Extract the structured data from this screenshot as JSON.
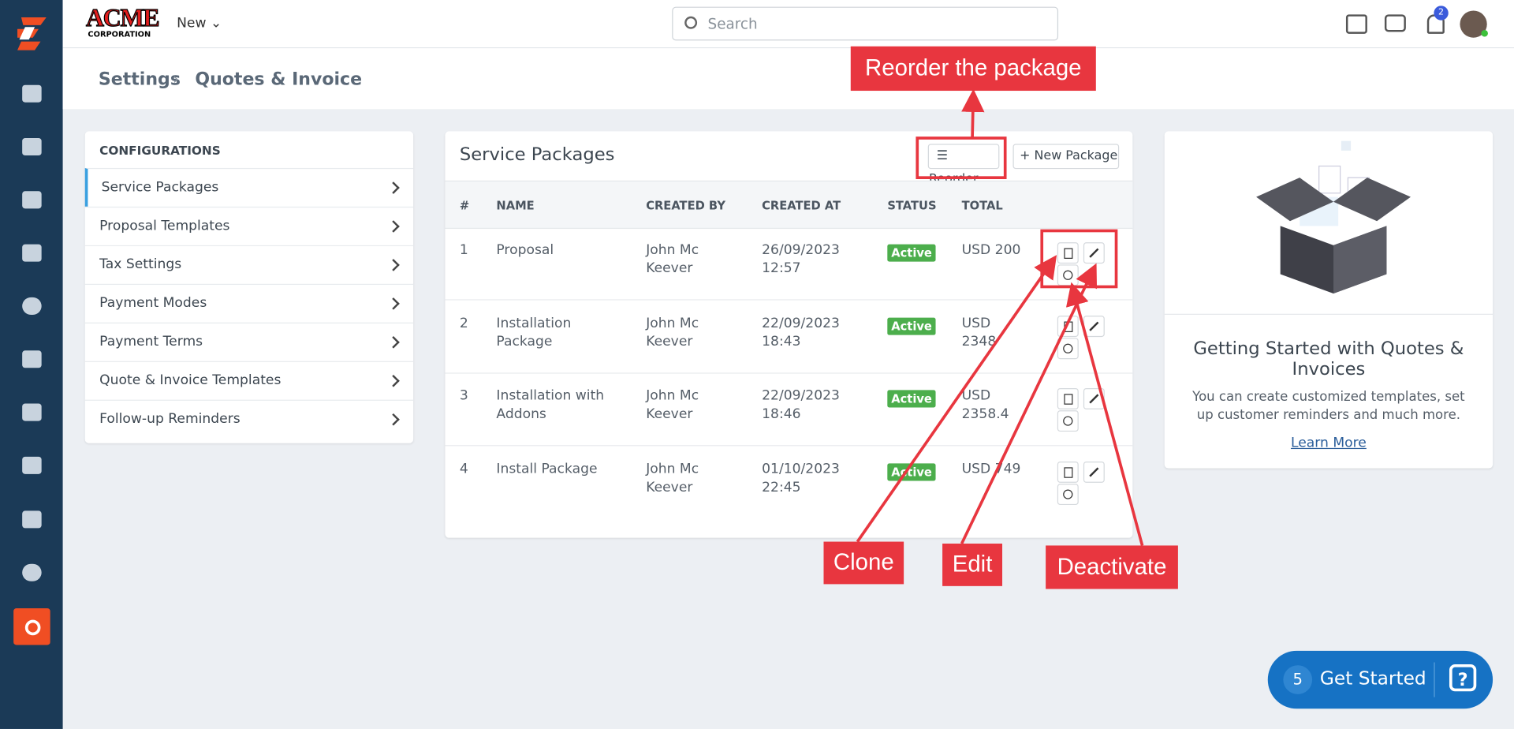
{
  "header": {
    "logo": "ACME",
    "logo_sub": "CORPORATION",
    "new_button": "New",
    "search_placeholder": "Search",
    "notification_count": 2
  },
  "breadcrumb": [
    "Settings",
    "Quotes & Invoice"
  ],
  "configurations": {
    "title": "CONFIGURATIONS",
    "items": [
      "Service Packages",
      "Proposal Templates",
      "Tax Settings",
      "Payment Modes",
      "Payment Terms",
      "Quote & Invoice Templates",
      "Follow-up Reminders"
    ]
  },
  "service_packages": {
    "title": "Service Packages",
    "reorder_button": "Reorder",
    "new_button": "New Package",
    "table": {
      "headers": [
        "#",
        "NAME",
        "CREATED BY",
        "CREATED AT",
        "STATUS",
        "TOTAL"
      ],
      "rows": [
        [
          1,
          "Proposal",
          "John Mc Keever",
          "26/09/2023 12:57",
          "Active",
          "USD 200"
        ],
        [
          2,
          "Installation Package",
          "John Mc Keever",
          "22/09/2023 18:43",
          "Active",
          "USD 2348"
        ],
        [
          3,
          "Installation with Addons",
          "John Mc Keever",
          "22/09/2023 18:46",
          "Active",
          "USD 2358.4"
        ],
        [
          4,
          "Install Package",
          "John Mc Keever",
          "01/10/2023 22:45",
          "Active",
          "USD 749"
        ]
      ]
    }
  },
  "info_card": {
    "title": "Getting Started with Quotes & Invoices",
    "text": "You can create customized templates, set up customer reminders and much more.",
    "link": "Learn More"
  },
  "annotations": [
    "Reorder the package",
    "Clone",
    "Edit",
    "Deactivate"
  ],
  "get_started": {
    "count": 5,
    "label": "Get Started"
  }
}
